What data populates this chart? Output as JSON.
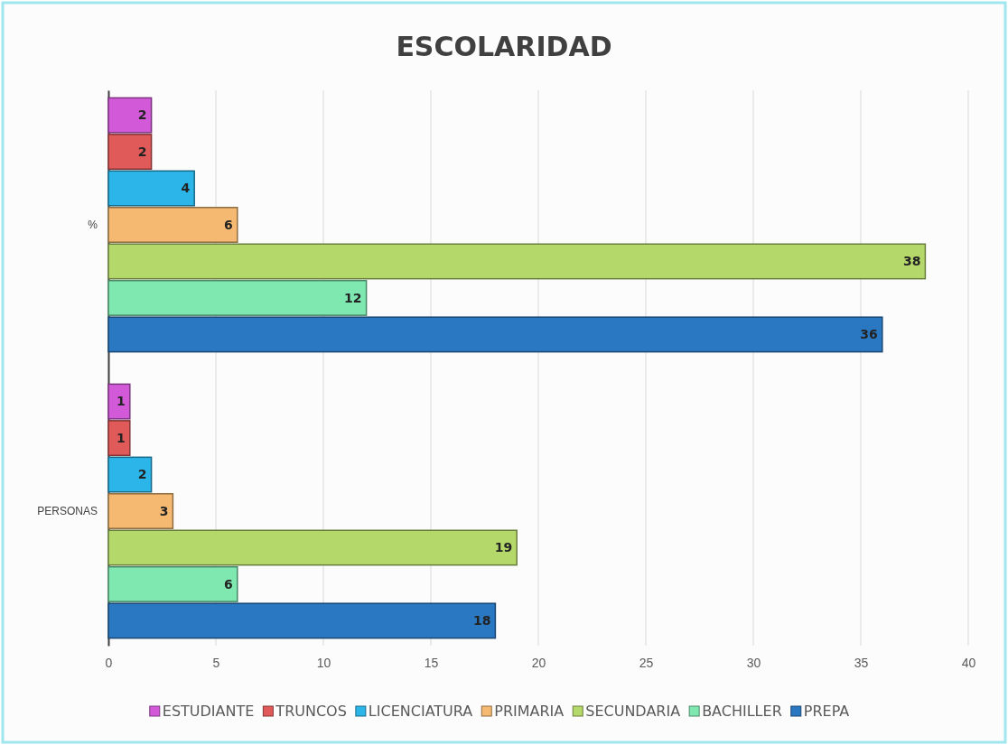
{
  "chart_data": {
    "type": "bar",
    "title": "ESCOLARIDAD",
    "orientation": "horizontal",
    "categories": [
      "%",
      "PERSONAS"
    ],
    "series": [
      {
        "name": "ESTUDIANTE",
        "color": "#d25ad8",
        "values": [
          2,
          1
        ]
      },
      {
        "name": "TRUNCOS",
        "color": "#e05a5a",
        "values": [
          2,
          1
        ]
      },
      {
        "name": "LICENCIATURA",
        "color": "#2bb5e8",
        "values": [
          4,
          2
        ]
      },
      {
        "name": "PRIMARIA",
        "color": "#f5b971",
        "values": [
          6,
          3
        ]
      },
      {
        "name": "SECUNDARIA",
        "color": "#b5d86a",
        "values": [
          38,
          19
        ]
      },
      {
        "name": "BACHILLER",
        "color": "#7ee8b0",
        "values": [
          12,
          6
        ]
      },
      {
        "name": "PREPA",
        "color": "#2a78c2",
        "values": [
          36,
          18
        ]
      }
    ],
    "xlim": [
      0,
      40
    ],
    "xticks": [
      0,
      5,
      10,
      15,
      20,
      25,
      30,
      35,
      40
    ],
    "grid": "x",
    "data_labels": true,
    "legend": "bottom"
  }
}
